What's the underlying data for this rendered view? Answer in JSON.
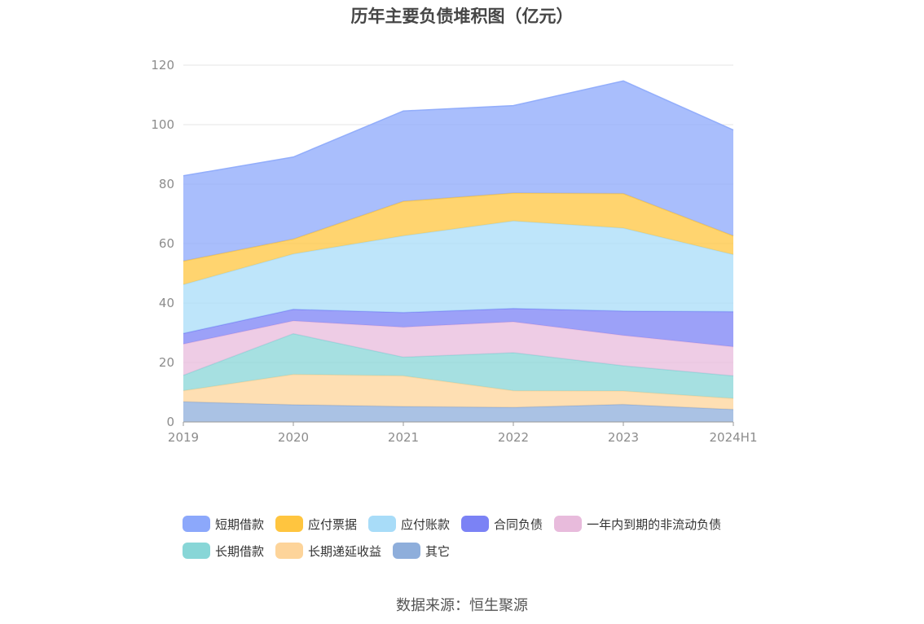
{
  "title": "历年主要负债堆积图（亿元）",
  "source": "数据来源：恒生聚源",
  "chart_data": {
    "type": "area",
    "stacked": true,
    "categories": [
      "2019",
      "2020",
      "2021",
      "2022",
      "2023",
      "2024H1"
    ],
    "ylim": [
      0,
      120
    ],
    "yticks": [
      0,
      20,
      40,
      60,
      80,
      100,
      120
    ],
    "grid": true,
    "legend_position": "bottom",
    "series": [
      {
        "name": "其它",
        "color": "#8eaedb",
        "values": [
          6.8,
          5.8,
          5.2,
          4.9,
          5.9,
          4.2
        ]
      },
      {
        "name": "长期递延收益",
        "color": "#fdd49a",
        "values": [
          3.7,
          10.2,
          10.3,
          5.6,
          4.5,
          3.7
        ]
      },
      {
        "name": "长期借款",
        "color": "#88d6d7",
        "values": [
          5.2,
          13.7,
          6.3,
          12.8,
          8.5,
          7.6
        ]
      },
      {
        "name": "一年内到期的非流动负债",
        "color": "#e8bbdc",
        "values": [
          10.5,
          4.3,
          10.1,
          10.4,
          10.2,
          9.8
        ]
      },
      {
        "name": "合同负债",
        "color": "#7b82f5",
        "values": [
          3.6,
          3.9,
          4.9,
          4.5,
          8.2,
          11.8
        ]
      },
      {
        "name": "应付账款",
        "color": "#a8dcf8",
        "values": [
          16.4,
          18.6,
          25.8,
          29.4,
          27.9,
          19.2
        ]
      },
      {
        "name": "应付票据",
        "color": "#ffc53f",
        "values": [
          7.9,
          5.0,
          11.6,
          9.4,
          11.6,
          6.3
        ]
      },
      {
        "name": "短期借款",
        "color": "#8ca8fb",
        "values": [
          28.7,
          27.6,
          30.4,
          29.4,
          37.9,
          35.6
        ]
      }
    ]
  },
  "legend_rows": [
    [
      {
        "label": "短期借款",
        "color": "#8ca8fb"
      },
      {
        "label": "应付票据",
        "color": "#ffc53f"
      },
      {
        "label": "应付账款",
        "color": "#a8dcf8"
      },
      {
        "label": "合同负债",
        "color": "#7b82f5"
      },
      {
        "label": "一年内到期的非流动负债",
        "color": "#e8bbdc"
      }
    ],
    [
      {
        "label": "长期借款",
        "color": "#88d6d7"
      },
      {
        "label": "长期递延收益",
        "color": "#fdd49a"
      },
      {
        "label": "其它",
        "color": "#8eaedb"
      }
    ]
  ]
}
